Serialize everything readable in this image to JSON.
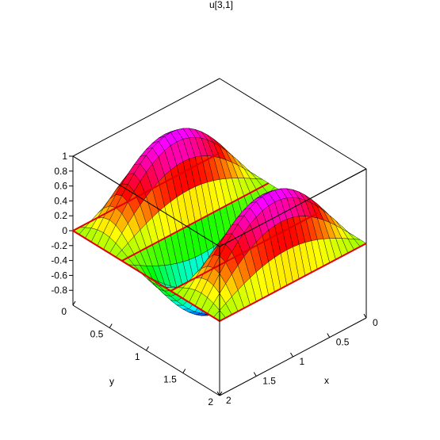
{
  "chart_data": {
    "type": "surface3d",
    "title": "u[3,1]",
    "function": "sin(3*pi*x/2) * sin(pi*y/2)",
    "x_label": "x",
    "y_label": "y",
    "x_range": [
      0,
      2
    ],
    "y_range": [
      0,
      2
    ],
    "z_range": [
      -0.8,
      1
    ],
    "x_ticks": [
      "0",
      "0.5",
      "1",
      "1.5",
      "2"
    ],
    "y_ticks": [
      "0",
      "0.5",
      "1",
      "1.5",
      "2"
    ],
    "z_ticks": [
      "1",
      "0.8",
      "0.6",
      "0.4",
      "0.2",
      "0",
      "-0.2",
      "-0.4",
      "-0.6",
      "-0.8"
    ],
    "z_tick_values": [
      1,
      0.8,
      0.6,
      0.4,
      0.2,
      0,
      -0.2,
      -0.4,
      -0.6,
      -0.8
    ],
    "grid_resolution": 24,
    "zero_contour_color": "#e00000",
    "box_color": "#000000",
    "colormap": "rainbow (blue low to magenta high)"
  }
}
